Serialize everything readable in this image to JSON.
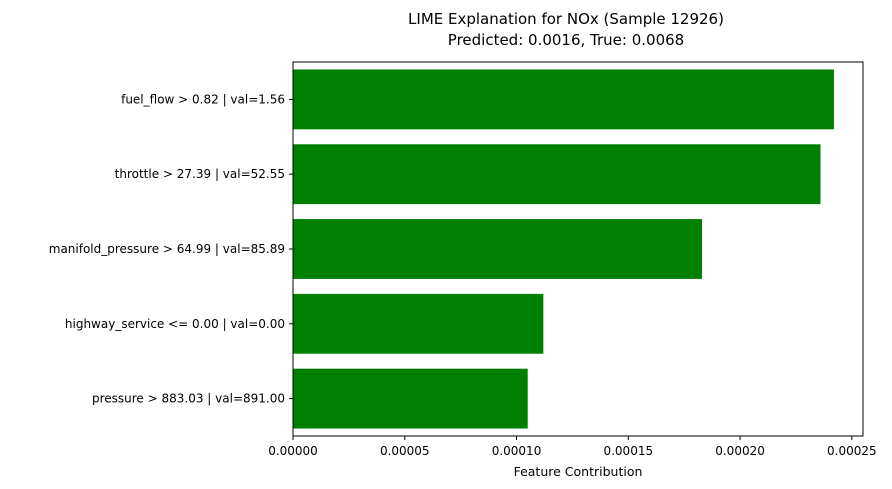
{
  "chart_data": {
    "type": "bar",
    "orientation": "horizontal",
    "title": "LIME Explanation for NOx (Sample 12926)",
    "subtitle": "Predicted: 0.0016, True: 0.0068",
    "xlabel": "Feature Contribution",
    "ylabel": "",
    "xlim": [
      0,
      0.000255
    ],
    "x_ticks": [
      "0.00000",
      "0.00005",
      "0.00010",
      "0.00015",
      "0.00020",
      "0.00025"
    ],
    "x_tick_values": [
      0,
      5e-05,
      0.0001,
      0.00015,
      0.0002,
      0.00025
    ],
    "categories": [
      "fuel_flow > 0.82 | val=1.56",
      "throttle > 27.39 | val=52.55",
      "manifold_pressure > 64.99 | val=85.89",
      "highway_service <= 0.00 | val=0.00",
      "pressure > 883.03 | val=891.00"
    ],
    "values": [
      0.000242,
      0.000236,
      0.000183,
      0.000112,
      0.000105
    ],
    "bar_color": "#008000",
    "grid": false,
    "legend": "none"
  }
}
